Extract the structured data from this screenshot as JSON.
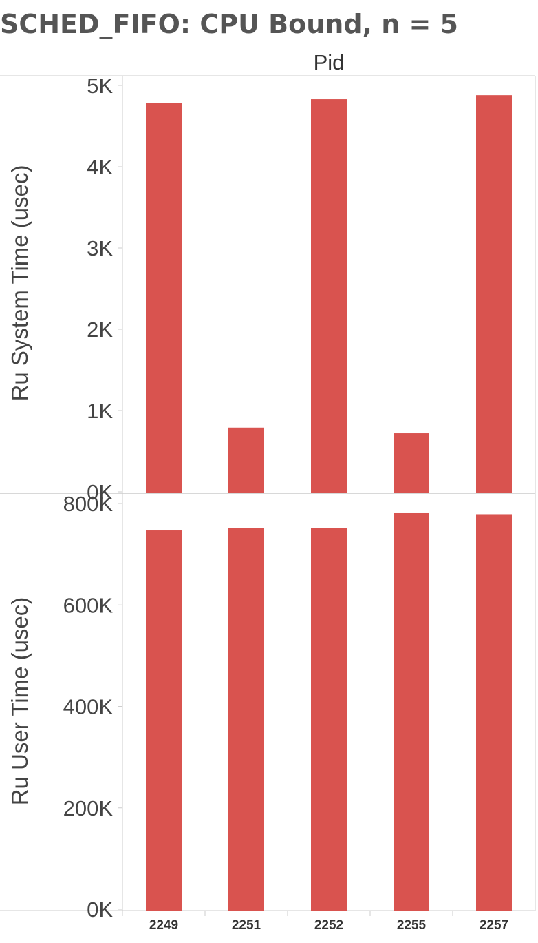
{
  "title": "SCHED_FIFO: CPU Bound, n = 5",
  "column_header": "Pid",
  "colors": {
    "bar": "#d9534f",
    "text": "#444444",
    "border": "#cccccc",
    "title": "#555555"
  },
  "chart_data": [
    {
      "type": "bar",
      "categories": [
        "2249",
        "2251",
        "2252",
        "2255",
        "2257"
      ],
      "values": [
        4780,
        790,
        4830,
        720,
        4880
      ],
      "ylabel": "Ru System Time (usec)",
      "ylim": [
        0,
        5000
      ],
      "yticks": [
        0,
        1000,
        2000,
        3000,
        4000,
        5000
      ],
      "ytick_labels": [
        "0K",
        "1K",
        "2K",
        "3K",
        "4K",
        "5K"
      ],
      "grid": false
    },
    {
      "type": "bar",
      "categories": [
        "2249",
        "2251",
        "2252",
        "2255",
        "2257"
      ],
      "values": [
        747000,
        752000,
        752000,
        781000,
        779000
      ],
      "ylabel": "Ru User Time (usec)",
      "ylim": [
        0,
        800000
      ],
      "yticks": [
        0,
        200000,
        400000,
        600000,
        800000
      ],
      "ytick_labels": [
        "0K",
        "200K",
        "400K",
        "600K",
        "800K"
      ],
      "grid": false
    }
  ]
}
